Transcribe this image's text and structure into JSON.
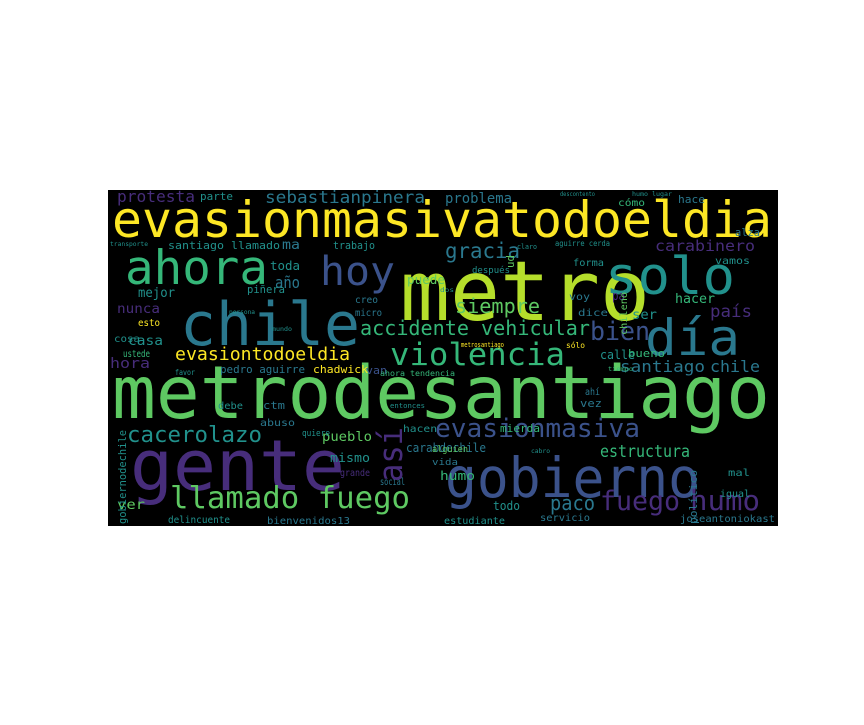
{
  "words": [
    "evasionmasivatodoeldia",
    "metrodesantiago",
    "metro",
    "chile",
    "gente",
    "gobierno",
    "ahora",
    "solo",
    "día",
    "hoy",
    "violencia",
    "llamado fuego",
    "evasionmasiva",
    "cacerolazo",
    "accidente vehicular",
    "bien",
    "evasiontodoeldia",
    "siempre",
    "gracia",
    "humo",
    "fuego",
    "paco",
    "sebastianpinera",
    "protesta",
    "problema",
    "año",
    "carabinero",
    "país",
    "santiago",
    "chile",
    "hacer",
    "mejor",
    "nunca",
    "casa",
    "hora",
    "puede",
    "toda",
    "mismo",
    "pueblo",
    "carabdechile",
    "humo",
    "estructura",
    "todo",
    "ver",
    "chadwick",
    "pedro aguirre",
    "estudiante",
    "bienvenidos13",
    "delincuente",
    "servicio",
    "joseantoniokast",
    "igual",
    "mal",
    "calle",
    "bueno",
    "ser",
    "vez",
    "hacen",
    "mierda",
    "alguien",
    "vida",
    "grande",
    "social",
    "ctm",
    "debe",
    "abuso",
    "quiere",
    "trabajo",
    "santiago llamado",
    "ma",
    "parte",
    "hace",
    "cómo",
    "alza",
    "vamos",
    "pa",
    "voy",
    "creo",
    "dice",
    "piñera",
    "micro",
    "van",
    "ahora tendencia",
    "forma",
    "después",
    "aguirre cerda",
    "ustede",
    "esto",
    "cosa",
    "sólo",
    "ahí",
    "favor",
    "entonces",
    "claro",
    "transporte",
    "metrosantiago",
    "humo lugar",
    "descontento",
    "persona",
    "mundo",
    "tiempo",
    "cabro",
    "dos",
    "así",
    "gobiernodechile",
    "político",
    "ud",
    "chileno"
  ]
}
